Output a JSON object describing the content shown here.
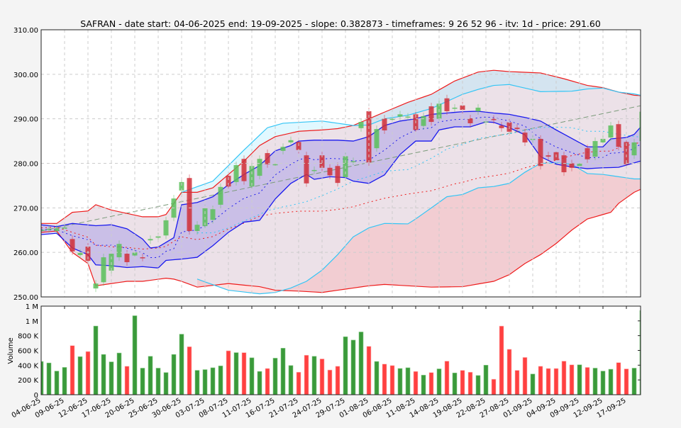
{
  "chart_data": {
    "type": "candlestick",
    "title": "SAFRAN - date start: 04-06-2025 end: 19-09-2025 - slope: 0.382873 - timeframes: 9 26 52 96 - itv: 1d - price: 291.60",
    "price_axis": {
      "ylim": [
        250,
        310
      ],
      "ticks": [
        "250.00",
        "260.00",
        "270.00",
        "280.00",
        "290.00",
        "300.00",
        "310.00"
      ],
      "tick_values": [
        250,
        260,
        270,
        280,
        290,
        300,
        310
      ]
    },
    "volume_axis": {
      "ylabel": "Volume",
      "ylim": [
        0,
        1200000
      ],
      "ticks": [
        "0",
        "200 K",
        "400 K",
        "600 K",
        "800 K",
        "1 M",
        "1 M"
      ],
      "tick_values": [
        0,
        200000,
        400000,
        600000,
        800000,
        1000000,
        1200000
      ]
    },
    "xticks": [
      {
        "i": 0,
        "label": "04-06-25"
      },
      {
        "i": 3,
        "label": "09-06-25"
      },
      {
        "i": 6,
        "label": "12-06-25"
      },
      {
        "i": 9,
        "label": "17-06-25"
      },
      {
        "i": 12,
        "label": "20-06-25"
      },
      {
        "i": 15,
        "label": "25-06-25"
      },
      {
        "i": 18,
        "label": "30-06-25"
      },
      {
        "i": 21,
        "label": "03-07-25"
      },
      {
        "i": 24,
        "label": "08-07-25"
      },
      {
        "i": 27,
        "label": "11-07-25"
      },
      {
        "i": 30,
        "label": "16-07-25"
      },
      {
        "i": 33,
        "label": "21-07-25"
      },
      {
        "i": 36,
        "label": "24-07-25"
      },
      {
        "i": 39,
        "label": "29-07-25"
      },
      {
        "i": 42,
        "label": "01-08-25"
      },
      {
        "i": 45,
        "label": "06-08-25"
      },
      {
        "i": 48,
        "label": "11-08-25"
      },
      {
        "i": 51,
        "label": "14-08-25"
      },
      {
        "i": 54,
        "label": "19-08-25"
      },
      {
        "i": 57,
        "label": "22-08-25"
      },
      {
        "i": 60,
        "label": "27-08-25"
      },
      {
        "i": 63,
        "label": "01-09-25"
      },
      {
        "i": 66,
        "label": "04-09-25"
      },
      {
        "i": 69,
        "label": "09-09-25"
      },
      {
        "i": 72,
        "label": "12-09-25"
      },
      {
        "i": 75,
        "label": "17-09-25"
      }
    ],
    "open": [
      265.0,
      265.2,
      264.8,
      265.3,
      263.0,
      259.4,
      261.3,
      251.9,
      253.3,
      255.9,
      258.9,
      259.7,
      259.3,
      258.9,
      262.7,
      263.3,
      263.8,
      267.8,
      273.9,
      276.7,
      264.8,
      265.9,
      267.3,
      270.7,
      277.2,
      275.8,
      281.0,
      274.8,
      277.2,
      282.3,
      279.7,
      282.8,
      284.7,
      284.8,
      281.8,
      278.4,
      281.8,
      279.0,
      279.4,
      276.9,
      280.4,
      287.9,
      291.7,
      283.4,
      290.1,
      289.9,
      290.5,
      290.4,
      291.0,
      288.4,
      292.8,
      290.0,
      294.6,
      292.4,
      293.0,
      290.1,
      291.7,
      289.3,
      290.0,
      288.5,
      289.2,
      288.0,
      286.9,
      285.4,
      285.5,
      281.8,
      282.5,
      281.8,
      280.0,
      279.4,
      283.4,
      281.5,
      284.7,
      285.8,
      288.8,
      284.8,
      281.8,
      285.0
    ],
    "close": [
      265.1,
      265.3,
      265.4,
      265.6,
      260.2,
      259.9,
      258.1,
      253.0,
      258.9,
      259.7,
      261.9,
      257.8,
      260.0,
      258.8,
      263.0,
      263.6,
      267.2,
      272.1,
      275.8,
      264.8,
      266.2,
      269.9,
      269.7,
      274.7,
      274.8,
      279.6,
      276.0,
      279.4,
      281.0,
      279.8,
      279.8,
      283.7,
      285.2,
      283.0,
      275.5,
      278.5,
      279.0,
      277.3,
      275.6,
      281.6,
      280.5,
      289.3,
      280.2,
      287.7,
      287.4,
      290.0,
      291.0,
      290.5,
      287.5,
      290.6,
      289.3,
      293.4,
      291.7,
      292.5,
      292.0,
      289.0,
      292.5,
      289.4,
      289.7,
      287.9,
      287.1,
      287.7,
      284.7,
      285.5,
      279.4,
      281.5,
      280.7,
      278.0,
      279.0,
      279.9,
      280.9,
      285.0,
      285.5,
      288.5,
      283.7,
      279.8,
      284.7,
      291.6
    ],
    "volume": [
      450000,
      430000,
      320000,
      370000,
      665000,
      515000,
      585000,
      930000,
      545000,
      445000,
      565000,
      385000,
      1070000,
      360000,
      520000,
      360000,
      300000,
      545000,
      820000,
      650000,
      330000,
      340000,
      365000,
      390000,
      595000,
      570000,
      570000,
      500000,
      315000,
      355000,
      495000,
      630000,
      395000,
      305000,
      535000,
      520000,
      485000,
      335000,
      385000,
      785000,
      740000,
      850000,
      655000,
      450000,
      415000,
      395000,
      355000,
      365000,
      315000,
      265000,
      300000,
      350000,
      455000,
      295000,
      330000,
      305000,
      260000,
      400000,
      210000,
      930000,
      615000,
      330000,
      505000,
      280000,
      385000,
      355000,
      355000,
      455000,
      405000,
      405000,
      370000,
      360000,
      320000,
      345000,
      435000,
      350000,
      360000,
      1140000
    ],
    "volume_up": [
      1,
      1,
      1,
      1,
      0,
      1,
      0,
      1,
      1,
      1,
      1,
      0,
      1,
      1,
      1,
      1,
      1,
      1,
      1,
      0,
      1,
      1,
      1,
      1,
      0,
      1,
      0,
      1,
      1,
      0,
      1,
      1,
      1,
      0,
      0,
      1,
      0,
      0,
      0,
      1,
      1,
      1,
      0,
      1,
      0,
      0,
      1,
      1,
      0,
      1,
      0,
      1,
      0,
      1,
      0,
      0,
      1,
      1,
      0,
      0,
      0,
      0,
      0,
      1,
      0,
      0,
      0,
      0,
      0,
      1,
      0,
      1,
      1,
      1,
      0,
      0,
      1,
      1
    ],
    "bands": {
      "outer_upper": [
        [
          0,
          266.5
        ],
        [
          2,
          266.5
        ],
        [
          4,
          269
        ],
        [
          6,
          269.3
        ],
        [
          7,
          270.7
        ],
        [
          9,
          269.5
        ],
        [
          13,
          268
        ],
        [
          15,
          268
        ],
        [
          16,
          268.5
        ],
        [
          18,
          273.5
        ],
        [
          20,
          273.5
        ],
        [
          22,
          274.5
        ],
        [
          24,
          277.5
        ],
        [
          26,
          280.5
        ],
        [
          28,
          284
        ],
        [
          30,
          286
        ],
        [
          33,
          287.2
        ],
        [
          36,
          287.5
        ],
        [
          38,
          287.8
        ],
        [
          40,
          288.5
        ],
        [
          42,
          290
        ],
        [
          44,
          291.5
        ],
        [
          47,
          293.7
        ],
        [
          50,
          295.5
        ],
        [
          53,
          298.5
        ],
        [
          56,
          300.5
        ],
        [
          58,
          300.9
        ],
        [
          60,
          300.6
        ],
        [
          64,
          300.3
        ],
        [
          67,
          299
        ],
        [
          70,
          297.5
        ],
        [
          72,
          297
        ],
        [
          74,
          296
        ],
        [
          76,
          295.3
        ],
        [
          77,
          295.2
        ]
      ],
      "outer_lower": [
        [
          0,
          264.5
        ],
        [
          2,
          264.8
        ],
        [
          4,
          260
        ],
        [
          6,
          257.5
        ],
        [
          7,
          252.5
        ],
        [
          9,
          253
        ],
        [
          11,
          253.5
        ],
        [
          13,
          253.5
        ],
        [
          16,
          254.2
        ],
        [
          17,
          254
        ],
        [
          18,
          253.5
        ],
        [
          20,
          252.2
        ],
        [
          24,
          253
        ],
        [
          28,
          252.3
        ],
        [
          30,
          251.5
        ],
        [
          33,
          251.3
        ],
        [
          36,
          251
        ],
        [
          38,
          251.5
        ],
        [
          42,
          252.5
        ],
        [
          44,
          252.8
        ],
        [
          47,
          252.5
        ],
        [
          50,
          252.2
        ],
        [
          54,
          252.3
        ],
        [
          58,
          253.5
        ],
        [
          60,
          255
        ],
        [
          62,
          257.5
        ],
        [
          64,
          259.5
        ],
        [
          66,
          262
        ],
        [
          68,
          265
        ],
        [
          70,
          267.5
        ],
        [
          72,
          268.5
        ],
        [
          73,
          269
        ],
        [
          74,
          271
        ],
        [
          76,
          273.5
        ],
        [
          77,
          274.3
        ]
      ],
      "cyan_upper": [
        [
          18,
          273.5
        ],
        [
          22,
          276
        ],
        [
          26,
          283
        ],
        [
          29,
          288
        ],
        [
          31,
          289
        ],
        [
          36,
          289.5
        ],
        [
          40,
          288.5
        ],
        [
          42,
          288.6
        ],
        [
          44,
          290
        ],
        [
          47,
          290.8
        ],
        [
          50,
          292.3
        ],
        [
          54,
          295.5
        ],
        [
          56,
          296.6
        ],
        [
          58,
          297.5
        ],
        [
          60,
          297.7
        ],
        [
          64,
          296.1
        ],
        [
          68,
          296.2
        ],
        [
          70,
          296.7
        ],
        [
          72,
          296.9
        ],
        [
          74,
          296
        ],
        [
          76,
          295.6
        ],
        [
          77,
          295.2
        ]
      ],
      "cyan_lower": [
        [
          20,
          254
        ],
        [
          24,
          251.5
        ],
        [
          28,
          250.7
        ],
        [
          30,
          251
        ],
        [
          32,
          252
        ],
        [
          34,
          253.5
        ],
        [
          36,
          256
        ],
        [
          38,
          259.5
        ],
        [
          40,
          263.5
        ],
        [
          42,
          265.5
        ],
        [
          44,
          266.5
        ],
        [
          47,
          266.4
        ],
        [
          48,
          267.5
        ],
        [
          50,
          270
        ],
        [
          52,
          272.5
        ],
        [
          54,
          273
        ],
        [
          56,
          274.5
        ],
        [
          58,
          274.8
        ],
        [
          60,
          275.5
        ],
        [
          62,
          278
        ],
        [
          64,
          280
        ],
        [
          66,
          280.1
        ],
        [
          68,
          279.8
        ],
        [
          70,
          277.7
        ],
        [
          72,
          277.5
        ],
        [
          74,
          277
        ],
        [
          76,
          276.5
        ],
        [
          77,
          276.5
        ]
      ],
      "blue_upper": [
        [
          0,
          266.2
        ],
        [
          2,
          265.8
        ],
        [
          4,
          266.5
        ],
        [
          7,
          266
        ],
        [
          9,
          266.2
        ],
        [
          11,
          265.3
        ],
        [
          13,
          263
        ],
        [
          14,
          261
        ],
        [
          15,
          261.2
        ],
        [
          17,
          263.3
        ],
        [
          18,
          270.7
        ],
        [
          20,
          271.2
        ],
        [
          22,
          272.5
        ],
        [
          24,
          275.2
        ],
        [
          26,
          277.5
        ],
        [
          28,
          279.5
        ],
        [
          30,
          282.8
        ],
        [
          32,
          284
        ],
        [
          33,
          285
        ],
        [
          35,
          285.2
        ],
        [
          38,
          285.2
        ],
        [
          40,
          285
        ],
        [
          42,
          286
        ],
        [
          44,
          288.5
        ],
        [
          46,
          289.5
        ],
        [
          48,
          290
        ],
        [
          50,
          291
        ],
        [
          52,
          291.3
        ],
        [
          54,
          291.6
        ],
        [
          56,
          291.7
        ],
        [
          58,
          291.3
        ],
        [
          60,
          291
        ],
        [
          62,
          290.3
        ],
        [
          64,
          289.5
        ],
        [
          66,
          287.5
        ],
        [
          70,
          283.7
        ],
        [
          72,
          283.7
        ],
        [
          73,
          285.5
        ],
        [
          75,
          285.8
        ],
        [
          76,
          286.5
        ],
        [
          77,
          288.5
        ]
      ],
      "blue_lower": [
        [
          0,
          264
        ],
        [
          2,
          264.3
        ],
        [
          4,
          261
        ],
        [
          6,
          259.5
        ],
        [
          7,
          257.2
        ],
        [
          9,
          257
        ],
        [
          11,
          256.6
        ],
        [
          13,
          256.8
        ],
        [
          15,
          256.5
        ],
        [
          16,
          258.2
        ],
        [
          18,
          258.5
        ],
        [
          20,
          258.9
        ],
        [
          22,
          261.5
        ],
        [
          24,
          264.5
        ],
        [
          26,
          266.8
        ],
        [
          28,
          267.2
        ],
        [
          30,
          272
        ],
        [
          32,
          275.5
        ],
        [
          34,
          277.5
        ],
        [
          35,
          276.4
        ],
        [
          37,
          277
        ],
        [
          39,
          276.8
        ],
        [
          40,
          276
        ],
        [
          42,
          275.5
        ],
        [
          44,
          277.4
        ],
        [
          46,
          282
        ],
        [
          48,
          285
        ],
        [
          50,
          285
        ],
        [
          51,
          287.5
        ],
        [
          53,
          288.2
        ],
        [
          55,
          288.2
        ],
        [
          57,
          289.3
        ],
        [
          58,
          289.2
        ],
        [
          60,
          288
        ],
        [
          62,
          286.4
        ],
        [
          64,
          281.5
        ],
        [
          66,
          279.8
        ],
        [
          68,
          279.2
        ],
        [
          70,
          278.8
        ],
        [
          72,
          279
        ],
        [
          74,
          279.1
        ],
        [
          75,
          279.6
        ],
        [
          77,
          280.6
        ]
      ]
    },
    "trendline": {
      "start": [
        0,
        264.8
      ],
      "end": [
        77,
        293.0
      ]
    },
    "grid": true,
    "colors": {
      "up": "#3a9a3a",
      "down": "#e8343a",
      "blue": "#1a1aee",
      "cyan": "#33c5f5",
      "red": "#ee1c1c",
      "trend": "#7a9a7a"
    }
  }
}
